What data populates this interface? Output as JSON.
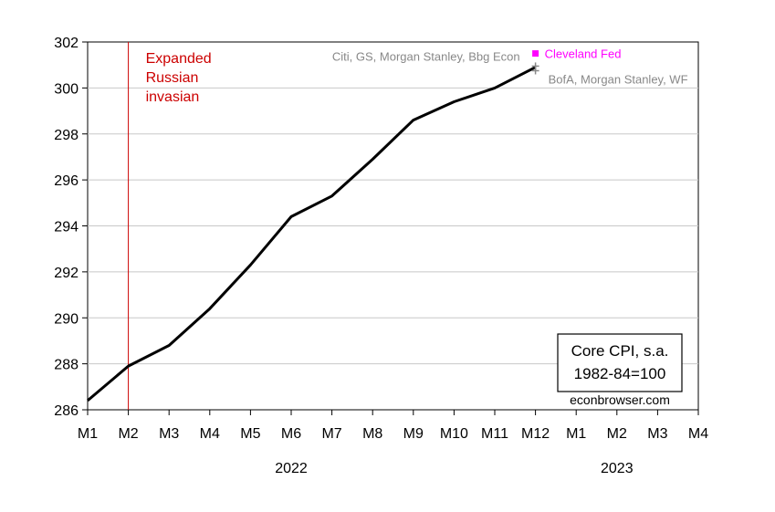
{
  "chart_data": {
    "type": "line",
    "title": "",
    "xlabel": "",
    "ylabel": "",
    "ylim": [
      286,
      302
    ],
    "yticks": [
      286,
      288,
      290,
      292,
      294,
      296,
      298,
      300,
      302
    ],
    "x_tick_labels": [
      "M1",
      "M2",
      "M3",
      "M4",
      "M5",
      "M6",
      "M7",
      "M8",
      "M9",
      "M10",
      "M11",
      "M12",
      "M1",
      "M2",
      "M3",
      "M4"
    ],
    "year_labels": [
      {
        "label": "2022",
        "month_index": 6
      },
      {
        "label": "2023",
        "month_index": 14
      }
    ],
    "grid": true,
    "series": [
      {
        "color": "#000000",
        "x": [
          1,
          2,
          3,
          4,
          5,
          6,
          7,
          8,
          9,
          10,
          11,
          12
        ],
        "values": [
          286.4,
          287.9,
          288.8,
          290.4,
          292.3,
          294.4,
          295.3,
          296.9,
          298.6,
          299.4,
          300.0,
          300.9
        ]
      }
    ],
    "forecasts": [
      {
        "label": "Cleveland Fed",
        "x": 12,
        "value": 301.5,
        "marker": "square",
        "color": "#ff00ff"
      },
      {
        "label": "Citi, GS, Morgan Stanley, Bbg Econ",
        "x": 12,
        "value": 300.95,
        "marker": "plus",
        "color": "#888888"
      },
      {
        "label": "BofA, Morgan Stanley, WF",
        "x": 12,
        "value": 300.75,
        "marker": "plus",
        "color": "#888888"
      }
    ],
    "event_line": {
      "x": 2,
      "label": [
        "Expanded",
        "Russian",
        "invasian"
      ],
      "color": "#cc0000"
    },
    "legend_box": {
      "lines": [
        "Core CPI, s.a.",
        "1982-84=100"
      ],
      "placement": "bottom-right"
    },
    "credit": "econbrowser.com"
  }
}
